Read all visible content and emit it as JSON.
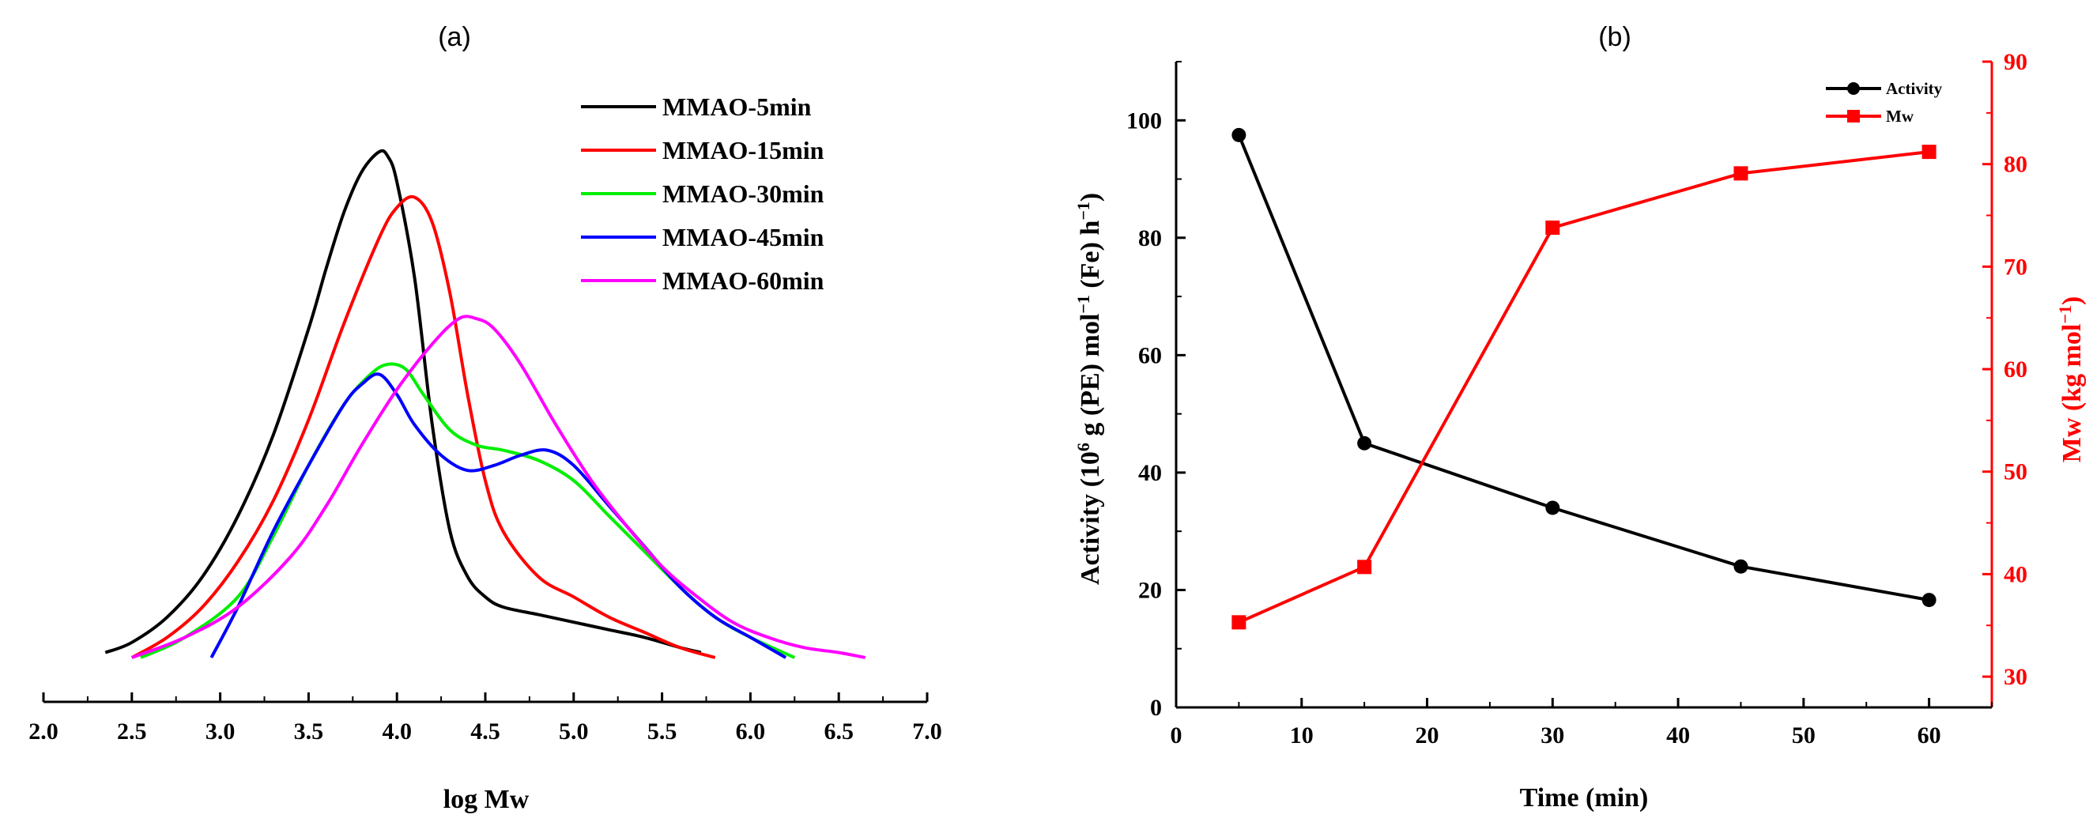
{
  "chart_data": [
    {
      "panel": "(a)",
      "type": "line",
      "title": "",
      "xlabel": "log Mw",
      "ylabel": "",
      "xlim": [
        2.0,
        7.0
      ],
      "ylim": [
        0,
        1
      ],
      "xticks": [
        "2.0",
        "2.5",
        "3.0",
        "3.5",
        "4.0",
        "4.5",
        "5.0",
        "5.5",
        "6.0",
        "6.5",
        "7.0"
      ],
      "yaxis_visible": false,
      "legend_position": "top-right",
      "series": [
        {
          "name": "MMAO-5min",
          "color": "#000000",
          "x": [
            2.35,
            2.5,
            2.7,
            2.9,
            3.1,
            3.3,
            3.5,
            3.6,
            3.7,
            3.8,
            3.9,
            3.95,
            4.0,
            4.1,
            4.2,
            4.3,
            4.4,
            4.5,
            4.6,
            4.8,
            5.0,
            5.2,
            5.4,
            5.6,
            5.72
          ],
          "y": [
            0.01,
            0.03,
            0.08,
            0.16,
            0.28,
            0.44,
            0.65,
            0.77,
            0.88,
            0.96,
            1.0,
            0.99,
            0.94,
            0.75,
            0.46,
            0.25,
            0.16,
            0.12,
            0.1,
            0.085,
            0.07,
            0.055,
            0.04,
            0.02,
            0.01
          ]
        },
        {
          "name": "MMAO-15min",
          "color": "#ff0000",
          "x": [
            2.5,
            2.7,
            2.9,
            3.1,
            3.3,
            3.5,
            3.7,
            3.9,
            4.0,
            4.1,
            4.2,
            4.3,
            4.4,
            4.5,
            4.6,
            4.8,
            5.0,
            5.2,
            5.4,
            5.6,
            5.8
          ],
          "y": [
            0.0,
            0.04,
            0.1,
            0.19,
            0.31,
            0.47,
            0.66,
            0.83,
            0.89,
            0.91,
            0.86,
            0.72,
            0.52,
            0.35,
            0.25,
            0.16,
            0.12,
            0.08,
            0.05,
            0.02,
            0.0
          ]
        },
        {
          "name": "MMAO-30min",
          "color": "#00ee00",
          "x": [
            2.55,
            2.8,
            3.1,
            3.3,
            3.5,
            3.7,
            3.85,
            3.95,
            4.05,
            4.15,
            4.3,
            4.45,
            4.6,
            4.8,
            5.0,
            5.2,
            5.4,
            5.6,
            5.8,
            6.0,
            6.25
          ],
          "y": [
            0.0,
            0.04,
            0.12,
            0.24,
            0.38,
            0.5,
            0.56,
            0.58,
            0.57,
            0.52,
            0.45,
            0.42,
            0.41,
            0.39,
            0.35,
            0.28,
            0.21,
            0.14,
            0.08,
            0.04,
            0.0
          ]
        },
        {
          "name": "MMAO-45min",
          "color": "#0000ff",
          "x": [
            2.95,
            3.1,
            3.3,
            3.5,
            3.7,
            3.8,
            3.9,
            4.0,
            4.1,
            4.25,
            4.4,
            4.55,
            4.7,
            4.85,
            5.0,
            5.2,
            5.4,
            5.6,
            5.8,
            6.0,
            6.2
          ],
          "y": [
            0.0,
            0.1,
            0.25,
            0.38,
            0.5,
            0.54,
            0.56,
            0.52,
            0.46,
            0.4,
            0.37,
            0.38,
            0.4,
            0.41,
            0.38,
            0.3,
            0.22,
            0.14,
            0.08,
            0.04,
            0.0
          ]
        },
        {
          "name": "MMAO-60min",
          "color": "#ff00ff",
          "x": [
            2.5,
            2.8,
            3.1,
            3.4,
            3.6,
            3.8,
            4.0,
            4.2,
            4.35,
            4.45,
            4.55,
            4.7,
            4.9,
            5.1,
            5.3,
            5.5,
            5.7,
            5.9,
            6.1,
            6.3,
            6.5,
            6.65
          ],
          "y": [
            0.0,
            0.04,
            0.1,
            0.2,
            0.3,
            0.42,
            0.53,
            0.62,
            0.67,
            0.67,
            0.65,
            0.58,
            0.46,
            0.35,
            0.26,
            0.18,
            0.12,
            0.07,
            0.04,
            0.02,
            0.01,
            0.0
          ]
        }
      ]
    },
    {
      "panel": "(b)",
      "type": "line",
      "title": "",
      "xlabel": "Time (min)",
      "ylabel_left_parts": [
        "Activity (10",
        "6",
        " g (PE) mol",
        "-1",
        " (Fe) h",
        "-1",
        ")"
      ],
      "ylabel_right_parts": [
        "Mw (kg mol",
        "-1",
        ")"
      ],
      "xlim": [
        0,
        65
      ],
      "ylim_left": [
        0,
        110
      ],
      "ylim_right": [
        27,
        90
      ],
      "xticks": [
        "0",
        "10",
        "20",
        "30",
        "40",
        "50",
        "60"
      ],
      "yticks_left": [
        "0",
        "20",
        "40",
        "60",
        "80",
        "100"
      ],
      "yticks_right": [
        "30",
        "40",
        "50",
        "60",
        "70",
        "80",
        "90"
      ],
      "legend_position": "top-right",
      "series": [
        {
          "name": "Activity",
          "axis": "left",
          "color": "#000000",
          "marker": "circle",
          "x": [
            5,
            15,
            30,
            45,
            60
          ],
          "y": [
            97.5,
            45,
            34,
            24,
            18.3
          ]
        },
        {
          "name": "Mw",
          "axis": "right",
          "color": "#ff0000",
          "marker": "square",
          "x": [
            5,
            15,
            30,
            45,
            60
          ],
          "y": [
            35.3,
            40.7,
            73.8,
            79.1,
            81.2
          ]
        }
      ]
    }
  ]
}
